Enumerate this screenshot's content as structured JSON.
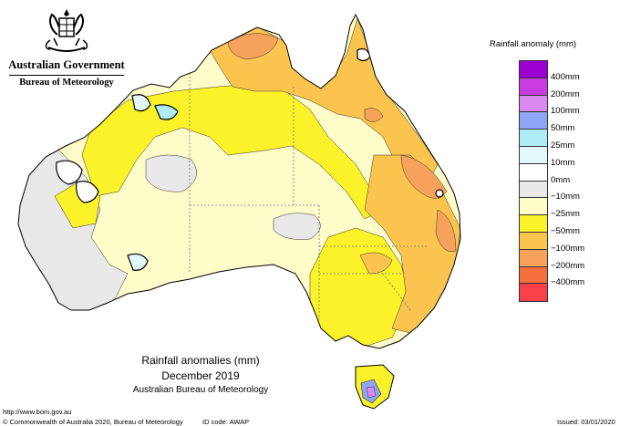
{
  "header": {
    "government": "Australian Government",
    "bureau": "Bureau of Meteorology"
  },
  "map": {
    "caption_title": "Rainfall anomalies (mm)",
    "caption_period": "December 2019",
    "caption_source": "Australian Bureau of Meteorology"
  },
  "legend": {
    "title": "Rainfall anomaly (mm)",
    "items": [
      {
        "label": "400mm",
        "color": "#9b00d3"
      },
      {
        "label": "200mm",
        "color": "#c83ce0"
      },
      {
        "label": "100mm",
        "color": "#d98af0"
      },
      {
        "label": "50mm",
        "color": "#8fa6f5"
      },
      {
        "label": "25mm",
        "color": "#b0ecf6"
      },
      {
        "label": "10mm",
        "color": "#e3f8fb"
      },
      {
        "label": "0mm",
        "color": "#ffffff"
      },
      {
        "label": "−10mm",
        "color": "#e8e8e8"
      },
      {
        "label": "−25mm",
        "color": "#fefcc8"
      },
      {
        "label": "−50mm",
        "color": "#fbf22a"
      },
      {
        "label": "−100mm",
        "color": "#fbc44e"
      },
      {
        "label": "−200mm",
        "color": "#f7a25a"
      },
      {
        "label": "−400mm",
        "color": "#f66f3e"
      },
      {
        "label": "",
        "color": "#f7404a"
      }
    ]
  },
  "footer": {
    "url": "http://www.bom.gov.au",
    "copyright": "© Commonwealth of Australia 2020, Bureau of Meteorology",
    "id_code": "ID code: AWAP",
    "issued": "Issued: 03/01/2020"
  }
}
